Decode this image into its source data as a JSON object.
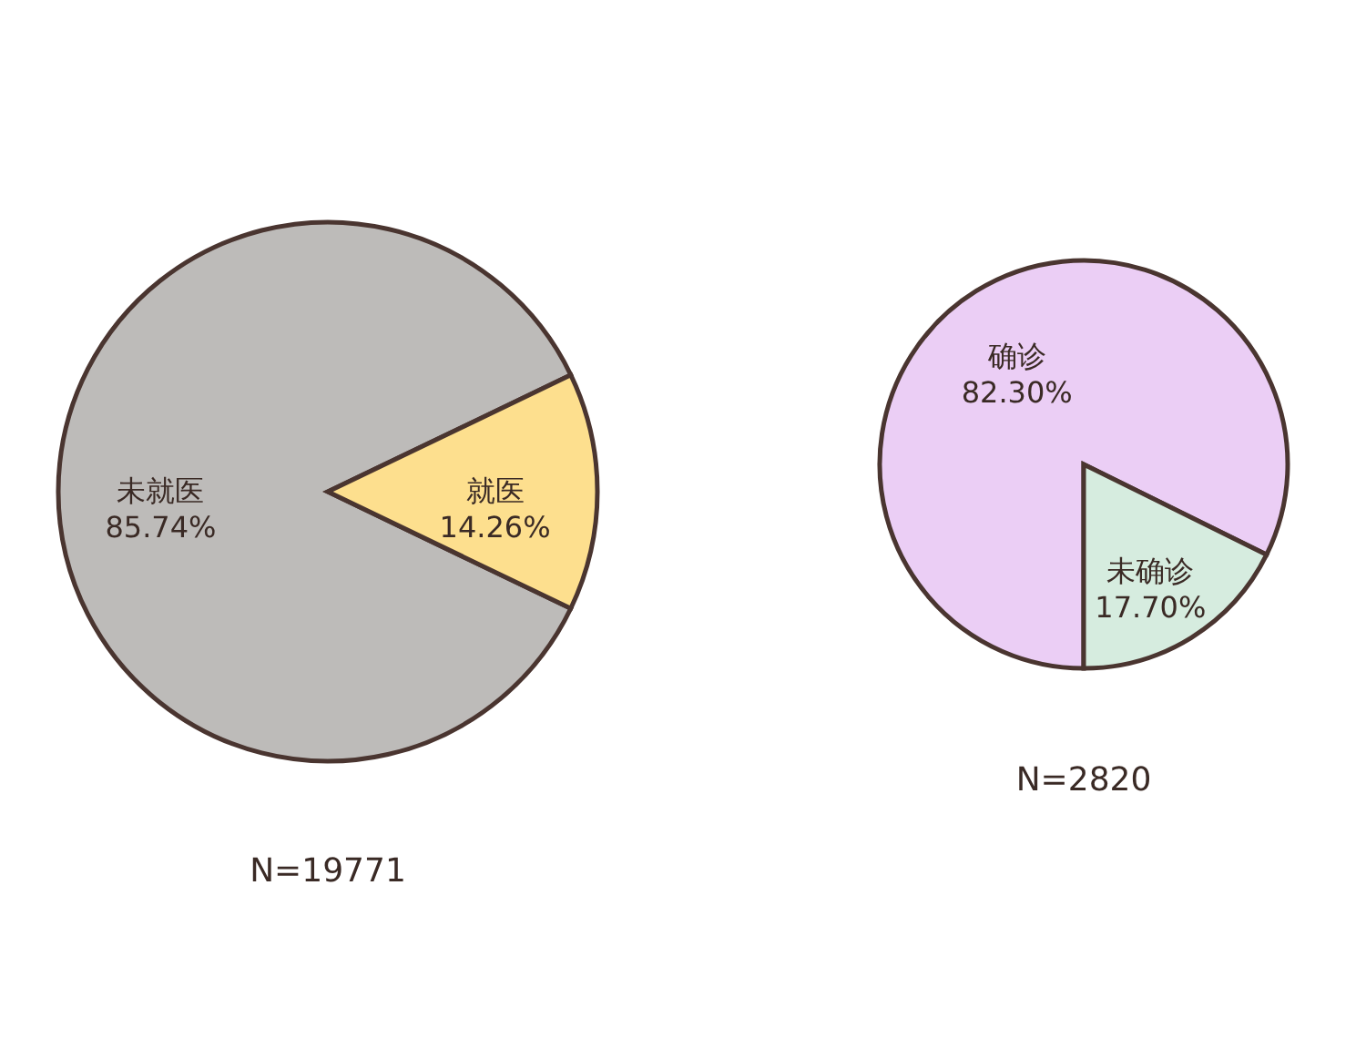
{
  "chart_data": [
    {
      "type": "pie",
      "categories": [
        "未就医",
        "就医"
      ],
      "values": [
        85.74,
        14.26
      ],
      "colors": [
        "#bdbbb9",
        "#fddf8e"
      ],
      "value_labels": [
        "85.74%",
        "14.26%"
      ],
      "annotations": [
        "N=19771"
      ]
    },
    {
      "type": "pie",
      "categories": [
        "确诊",
        "未确诊"
      ],
      "values": [
        82.3,
        17.7
      ],
      "colors": [
        "#ebcef5",
        "#d6ecdf"
      ],
      "value_labels": [
        "82.30%",
        "17.70%"
      ],
      "annotations": [
        "N=2820"
      ]
    }
  ]
}
